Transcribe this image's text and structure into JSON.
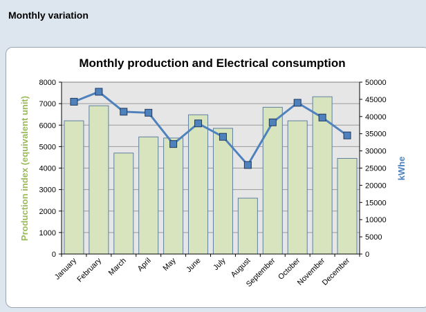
{
  "header": {
    "title": "Monthly variation"
  },
  "colors": {
    "bar_fill": "#d7e4bd",
    "bar_stroke": "#5f7f9f",
    "line": "#4f81bd",
    "marker_fill": "#4f81bd",
    "marker_stroke": "#1f3a5f",
    "plot_bg": "#e6e6e6",
    "grid": "#9a9a9a"
  },
  "chart_data": {
    "type": "bar",
    "title": "Monthly production and Electrical consumption",
    "categories": [
      "January",
      "February",
      "March",
      "April",
      "May",
      "June",
      "July",
      "August",
      "September",
      "October",
      "November",
      "December"
    ],
    "series": [
      {
        "name": "Production index (equivalent unit)",
        "type": "bar",
        "axis": "left",
        "values": [
          6200,
          6900,
          4700,
          5450,
          5400,
          6480,
          5850,
          2600,
          6830,
          6200,
          7320,
          4450
        ]
      },
      {
        "name": "kWhe",
        "type": "line",
        "axis": "right",
        "values": [
          44300,
          47200,
          41400,
          41100,
          32000,
          38000,
          34100,
          25900,
          38300,
          44000,
          39700,
          34500
        ]
      }
    ],
    "ylabel": "Production index (equivalent unit)",
    "ylabel_right": "kWhe",
    "ylim": [
      0,
      8000
    ],
    "ylim_right": [
      0,
      50000
    ],
    "yticks": [
      0,
      1000,
      2000,
      3000,
      4000,
      5000,
      6000,
      7000,
      8000
    ],
    "yticks_right": [
      0,
      5000,
      10000,
      15000,
      20000,
      25000,
      30000,
      35000,
      40000,
      45000,
      50000
    ],
    "grid": true,
    "legend": "none"
  }
}
